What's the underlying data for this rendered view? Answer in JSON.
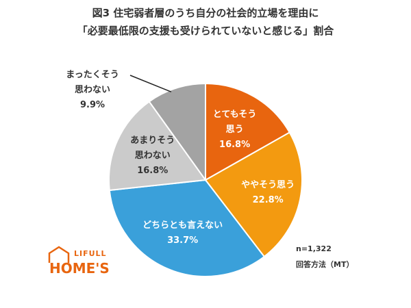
{
  "chart_data": {
    "type": "pie",
    "title": "図3 住宅弱者層のうち自分の社会的立場を理由に",
    "subtitle": "「必要最低限の支援も受けられていないと感じる」割合",
    "categories": [
      "とてもそう\n思う",
      "ややそう思う",
      "どちらとも言えない",
      "あまりそう\n思わない",
      "まったくそう\n思わない"
    ],
    "values": [
      16.8,
      22.8,
      33.7,
      16.8,
      9.9
    ],
    "value_labels": [
      "16.8%",
      "22.8%",
      "33.7%",
      "16.8%",
      "9.9%"
    ],
    "colors": [
      "#e8650f",
      "#f39a10",
      "#3aa0da",
      "#cbcbcb",
      "#a3a3a3"
    ],
    "notes": [
      "n=1,322",
      "回答方法（MT）"
    ],
    "logo": [
      "LIFULL",
      "HOME'S"
    ]
  }
}
